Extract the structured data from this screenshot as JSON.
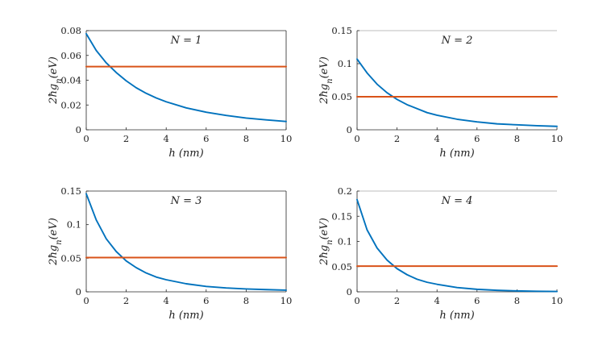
{
  "colors": {
    "curve": "#0072BD",
    "hline": "#D95319",
    "axis": "#262626",
    "background": "#ffffff"
  },
  "chart_data": [
    {
      "type": "line",
      "title": "N = 1",
      "xlabel": "h (nm)",
      "ylabel": "2ħg_n(eV)",
      "xlim": [
        0,
        10
      ],
      "ylim": [
        0,
        0.08
      ],
      "xticks": [
        0,
        2,
        4,
        6,
        8,
        10
      ],
      "xtick_labels": [
        "0",
        "2",
        "4",
        "6",
        "8",
        "10"
      ],
      "yticks": [
        0,
        0.02,
        0.04,
        0.06,
        0.08
      ],
      "ytick_labels": [
        "0",
        "0.02",
        "0.04",
        "0.06",
        "0.08"
      ],
      "grid": false,
      "box": true,
      "series": [
        {
          "style": "curve",
          "x": [
            0,
            0.5,
            1,
            1.5,
            2,
            2.5,
            3,
            3.5,
            4,
            5,
            6,
            7,
            8,
            9,
            10
          ],
          "y": [
            0.0775,
            0.064,
            0.054,
            0.0462,
            0.0395,
            0.0339,
            0.0294,
            0.0257,
            0.0226,
            0.0177,
            0.0142,
            0.0116,
            0.0095,
            0.008,
            0.0067
          ]
        },
        {
          "style": "hline",
          "x": [
            0,
            10
          ],
          "y": [
            0.051,
            0.051
          ]
        }
      ]
    },
    {
      "type": "line",
      "title": "N = 2",
      "xlabel": "h (nm)",
      "ylabel": "2ħg_n(eV)",
      "xlim": [
        0,
        10
      ],
      "ylim": [
        0,
        0.15
      ],
      "xticks": [
        0,
        2,
        4,
        6,
        8,
        10
      ],
      "xtick_labels": [
        "0",
        "2",
        "4",
        "6",
        "8",
        "10"
      ],
      "yticks": [
        0,
        0.05,
        0.1,
        0.15
      ],
      "ytick_labels": [
        "0",
        "0.05",
        "0.1",
        "0.15"
      ],
      "grid": false,
      "box": false,
      "series": [
        {
          "style": "curve",
          "x": [
            0,
            0.5,
            1,
            1.5,
            2,
            2.5,
            3,
            3.5,
            4,
            5,
            6,
            7,
            8,
            9,
            10
          ],
          "y": [
            0.107,
            0.086,
            0.069,
            0.056,
            0.046,
            0.038,
            0.032,
            0.026,
            0.022,
            0.016,
            0.012,
            0.009,
            0.0075,
            0.0062,
            0.0052
          ]
        },
        {
          "style": "hline",
          "x": [
            0,
            10
          ],
          "y": [
            0.05,
            0.05
          ]
        }
      ]
    },
    {
      "type": "line",
      "title": "N = 3",
      "xlabel": "h (nm)",
      "ylabel": "2ħg_n(eV)",
      "xlim": [
        0,
        10
      ],
      "ylim": [
        0,
        0.15
      ],
      "xticks": [
        0,
        2,
        4,
        6,
        8,
        10
      ],
      "xtick_labels": [
        "0",
        "2",
        "4",
        "6",
        "8",
        "10"
      ],
      "yticks": [
        0,
        0.05,
        0.1,
        0.15
      ],
      "ytick_labels": [
        "0",
        "0.05",
        "0.1",
        "0.15"
      ],
      "grid": false,
      "box": true,
      "series": [
        {
          "style": "curve",
          "x": [
            0,
            0.5,
            1,
            1.5,
            2,
            2.5,
            3,
            3.5,
            4,
            5,
            6,
            7,
            8,
            9,
            10
          ],
          "y": [
            0.146,
            0.107,
            0.079,
            0.06,
            0.046,
            0.036,
            0.028,
            0.022,
            0.018,
            0.012,
            0.008,
            0.0058,
            0.0043,
            0.0033,
            0.0025
          ]
        },
        {
          "style": "hline",
          "x": [
            0,
            10
          ],
          "y": [
            0.051,
            0.051
          ]
        }
      ]
    },
    {
      "type": "line",
      "title": "N = 4",
      "xlabel": "h (nm)",
      "ylabel": "2ħg_n(eV)",
      "xlim": [
        0,
        10
      ],
      "ylim": [
        0,
        0.2
      ],
      "xticks": [
        0,
        2,
        4,
        6,
        8,
        10
      ],
      "xtick_labels": [
        "0",
        "2",
        "4",
        "6",
        "8",
        "10"
      ],
      "yticks": [
        0,
        0.05,
        0.1,
        0.15,
        0.2
      ],
      "ytick_labels": [
        "0",
        "0.05",
        "0.1",
        "0.15",
        "0.2"
      ],
      "grid": false,
      "box": false,
      "series": [
        {
          "style": "curve",
          "x": [
            0,
            0.5,
            1,
            1.5,
            2,
            2.5,
            3,
            3.5,
            4,
            5,
            6,
            7,
            8,
            9,
            10
          ],
          "y": [
            0.183,
            0.123,
            0.087,
            0.063,
            0.046,
            0.034,
            0.025,
            0.019,
            0.015,
            0.0085,
            0.005,
            0.003,
            0.0018,
            0.0011,
            0.0007
          ]
        },
        {
          "style": "hline",
          "x": [
            0,
            10
          ],
          "y": [
            0.051,
            0.051
          ]
        }
      ]
    }
  ]
}
